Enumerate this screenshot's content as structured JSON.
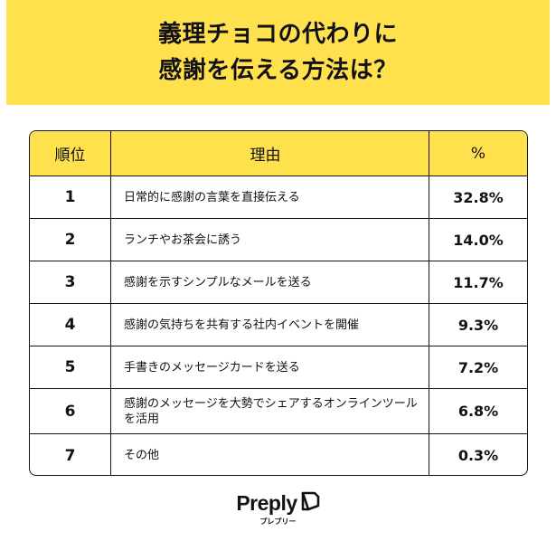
{
  "header": {
    "title_line1": "義理チョコの代わりに",
    "title_line2": "感謝を伝える方法は？",
    "background": "#FFE14D"
  },
  "table": {
    "columns": [
      "順位",
      "理由",
      "%"
    ],
    "rows": [
      {
        "rank": "1",
        "reason": "日常的に感謝の言葉を直接伝える",
        "percent": "32.8%"
      },
      {
        "rank": "2",
        "reason": "ランチやお茶会に誘う",
        "percent": "14.0%"
      },
      {
        "rank": "3",
        "reason": "感謝を示すシンプルなメールを送る",
        "percent": "11.7%"
      },
      {
        "rank": "4",
        "reason": "感謝の気持ちを共有する社内イベントを開催",
        "percent": "9.3%"
      },
      {
        "rank": "5",
        "reason": "手書きのメッセージカードを送る",
        "percent": "7.2%"
      },
      {
        "rank": "6",
        "reason": "感謝のメッセージを大勢でシェアするオンラインツールを活用",
        "percent": "6.8%"
      },
      {
        "rank": "7",
        "reason": "その他",
        "percent": "0.3%"
      }
    ]
  },
  "brand": {
    "name": "Preply",
    "subtitle": "プレプリー",
    "logo_icon": "preply-logo-icon"
  }
}
